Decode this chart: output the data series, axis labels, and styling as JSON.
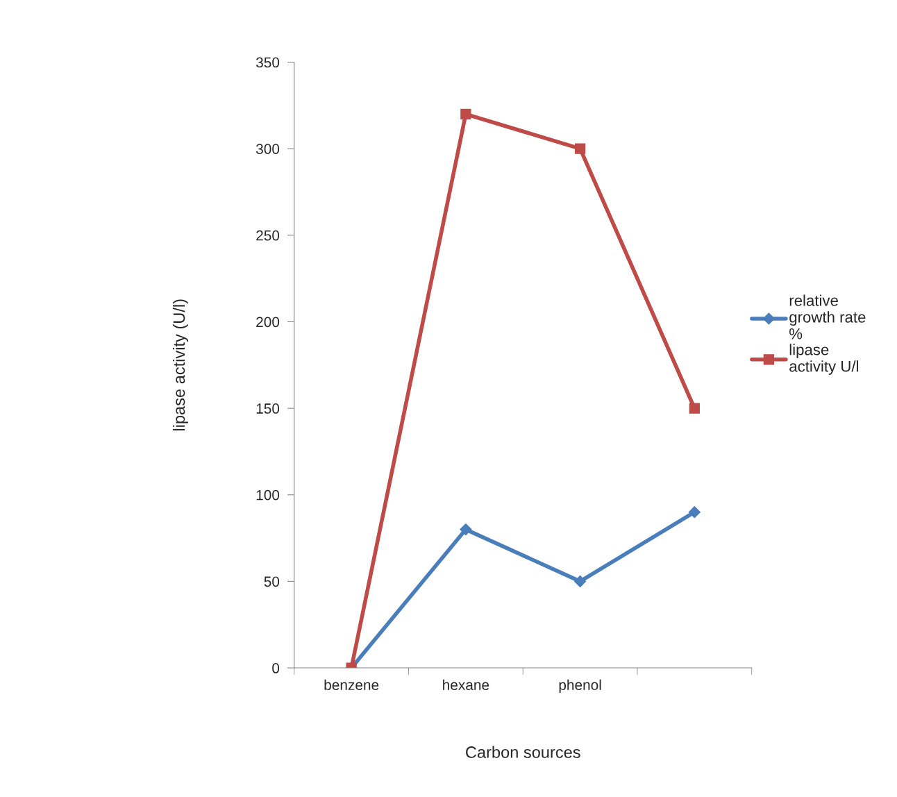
{
  "chart_data": {
    "type": "line",
    "xlabel": "Carbon sources",
    "ylabel": "lipase activity (U/l)",
    "categories": [
      "benzene",
      "hexane",
      "phenol",
      null
    ],
    "series": [
      {
        "name": "relative growth rate %",
        "color": "#4a7ebb",
        "marker": "diamond",
        "values": [
          0,
          80,
          50,
          90
        ]
      },
      {
        "name": "lipase activity U/l",
        "color": "#be4b48",
        "marker": "square",
        "values": [
          0,
          320,
          300,
          150
        ]
      }
    ],
    "ylim": [
      0,
      350
    ],
    "yticks": [
      0,
      50,
      100,
      150,
      200,
      250,
      300,
      350
    ],
    "grid": false,
    "legend": "right",
    "line_style": "solid"
  }
}
